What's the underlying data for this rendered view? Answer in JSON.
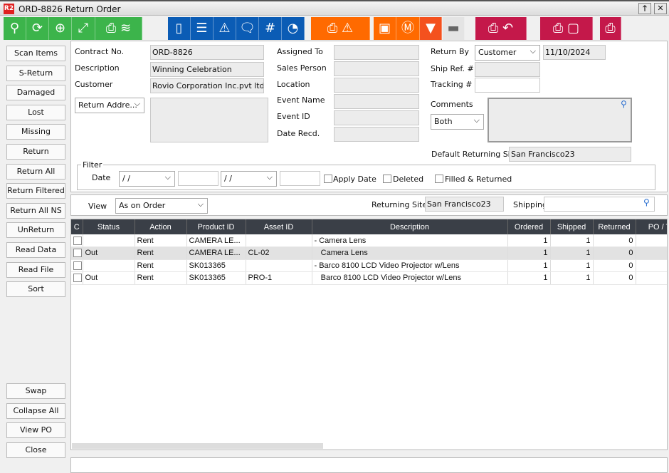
{
  "window": {
    "title": "ORD-8826 Return Order",
    "logo": "R2",
    "restore": "🡑",
    "close": "✕"
  },
  "toolbar": {
    "green": [
      "search-icon",
      "refresh-icon",
      "zoom-in-icon",
      "expand-icon",
      "print-layers-icon"
    ],
    "blue": [
      "book-icon",
      "list-icon",
      "warning-eye-icon",
      "comment-icon",
      "hash-icon",
      "gauge-icon"
    ],
    "orange": [
      "print-warning-icon",
      "box-icon",
      "box-m-icon",
      "filter-icon",
      "scanner-icon"
    ],
    "crimson": [
      "print-return-icon",
      "print-box-icon",
      "printer-icon"
    ],
    "colors": {
      "green": "#3cb44b",
      "blue": "#0b5cb5",
      "orange": "#ff6a00",
      "crimson": "#c4184a"
    }
  },
  "sidebar": {
    "top": [
      "Scan Items",
      "S-Return",
      "Damaged",
      "Lost",
      "Missing",
      "Return",
      "Return All",
      "Return Filtered",
      "Return All NS",
      "UnReturn",
      "Read Data",
      "Read File",
      "Sort"
    ],
    "bottom": [
      "Swap",
      "Collapse All",
      "View PO",
      "Close"
    ]
  },
  "form": {
    "contract_no_label": "Contract No.",
    "contract_no": "ORD-8826",
    "description_label": "Description",
    "description": "Winning Celebration",
    "customer_label": "Customer",
    "customer": "Rovio Corporation Inc.pvt ltd",
    "return_address": "Return Addre...",
    "assigned_to_label": "Assigned To",
    "sales_person_label": "Sales Person",
    "location_label": "Location",
    "event_name_label": "Event Name",
    "event_id_label": "Event ID",
    "date_recd_label": "Date Recd.",
    "return_by_label": "Return By",
    "return_by": "Customer",
    "return_date": "11/10/2024",
    "ship_ref_label": "Ship Ref. #",
    "tracking_label": "Tracking #",
    "comments_label": "Comments",
    "comments_scope": "Both",
    "default_site_label": "Default Returning Site",
    "default_site": "San Francisco23"
  },
  "filter": {
    "title": "Filter",
    "date_label": "Date",
    "date_from": " / /",
    "date_to": " / /",
    "apply_date": "Apply Date",
    "deleted": "Deleted",
    "filled_returned": "Filled & Returned"
  },
  "viewbar": {
    "view_label": "View",
    "view": "As on Order",
    "returning_site_label": "Returning Site",
    "returning_site": "San Francisco23",
    "shipping_site_label": "Shipping Site",
    "shipping_site": ""
  },
  "table": {
    "columns": [
      "C",
      "Status",
      "Action",
      "Product ID",
      "Asset ID",
      "Description",
      "Ordered",
      "Shipped",
      "Returned",
      "PO / T"
    ],
    "rows": [
      {
        "status": "",
        "action": "Rent",
        "product": "CAMERA LE...",
        "asset": "",
        "desc": "- Camera Lens",
        "ordered": "1",
        "shipped": "1",
        "returned": "0"
      },
      {
        "status": "Out",
        "action": "Rent",
        "product": "CAMERA LE...",
        "asset": "CL-02",
        "desc": "   Camera Lens",
        "ordered": "1",
        "shipped": "1",
        "returned": "0"
      },
      {
        "status": "",
        "action": "Rent",
        "product": "SK013365",
        "asset": "",
        "desc": "- Barco 8100 LCD Video Projector w/Lens",
        "ordered": "1",
        "shipped": "1",
        "returned": "0"
      },
      {
        "status": "Out",
        "action": "Rent",
        "product": "SK013365",
        "asset": "PRO-1",
        "desc": "   Barco 8100 LCD Video Projector w/Lens",
        "ordered": "1",
        "shipped": "1",
        "returned": "0"
      }
    ]
  }
}
